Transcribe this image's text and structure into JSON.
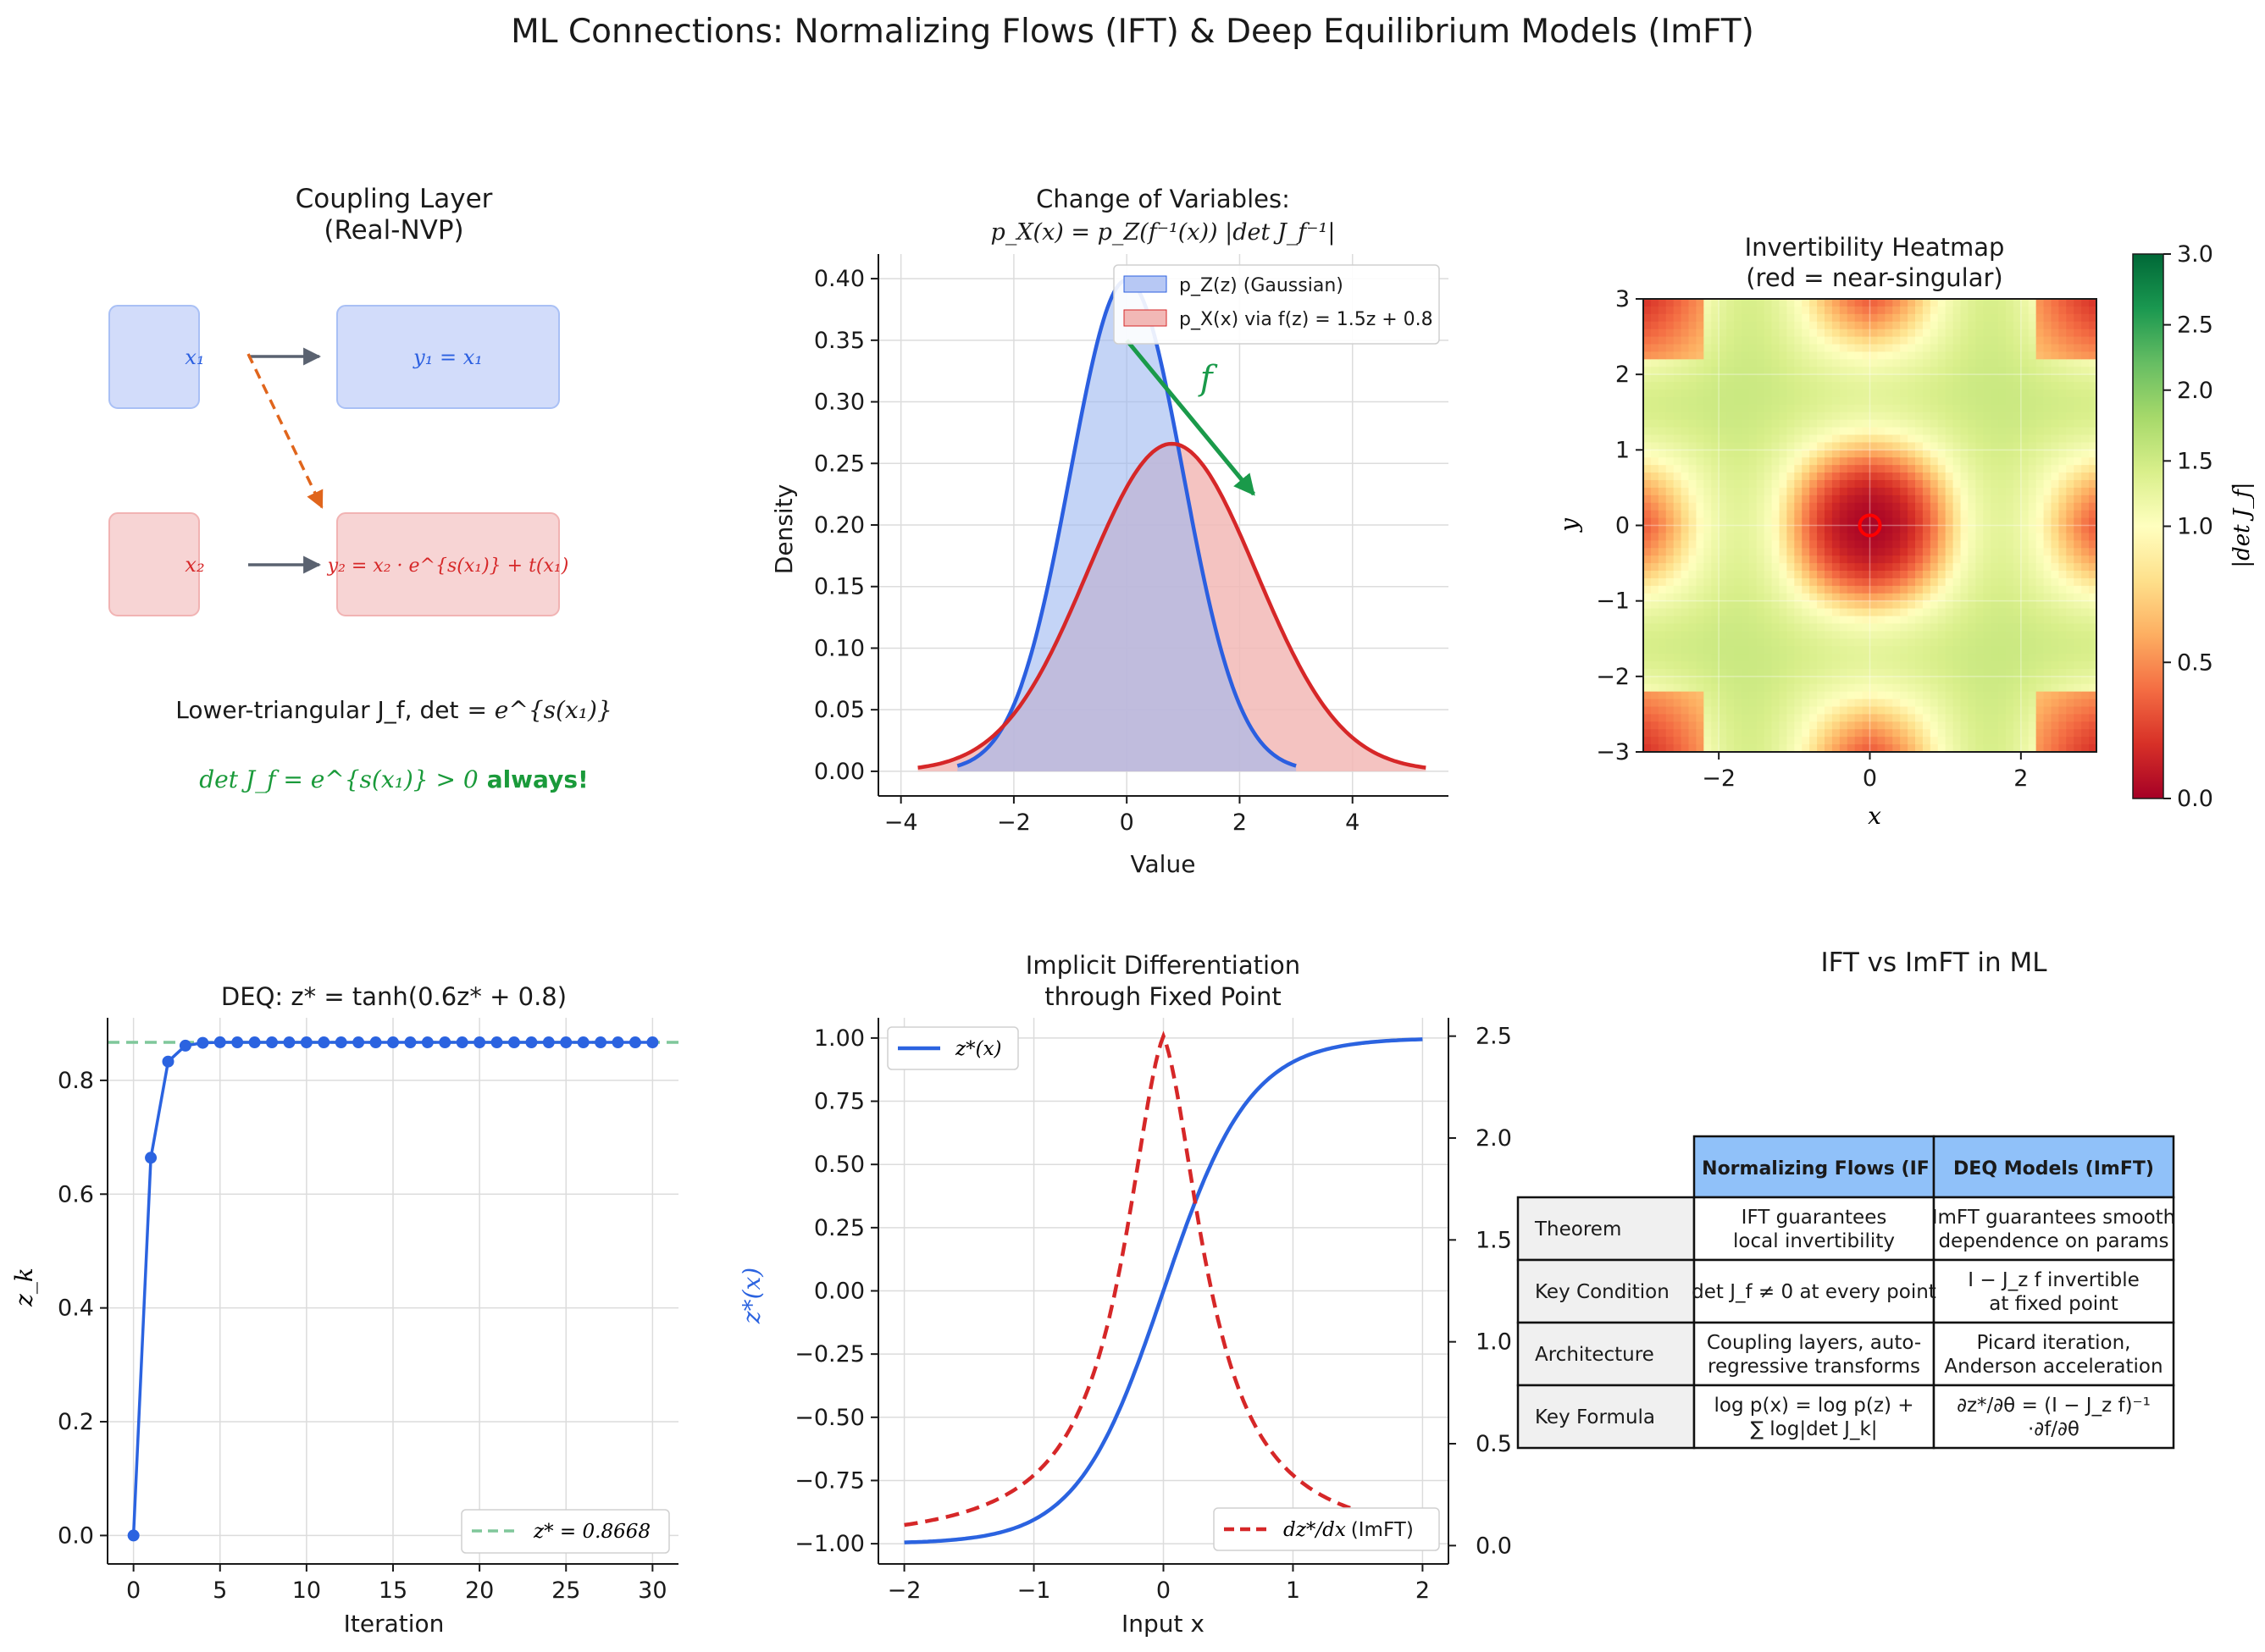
{
  "figure": {
    "suptitle": "ML Connections: Normalizing Flows (IFT) & Deep Equilibrium Models (ImFT)"
  },
  "coupling": {
    "title_line1": "Coupling Layer",
    "title_line2": "(Real-NVP)",
    "x1": "x₁",
    "x2": "x₂",
    "y1": "y₁ = x₁",
    "y2": "y₂ = x₂ · e^{s(x₁)} + t(x₁)",
    "det_prefix": "Lower-triangular J_f, det",
    "det_suffix": "= e^{s(x₁)}",
    "always_math": "det J_f = e^{s(x₁)} > 0",
    "always_word": "always!",
    "colors": {
      "blue_fill": "#d2dcfa",
      "blue_edge": "#a9c0f5",
      "red_fill": "#f7d4d4",
      "red_edge": "#f1b3b3",
      "arrow": "#5a6270",
      "dashed": "#e0651c",
      "always": "#1a9a3a"
    }
  },
  "cov": {
    "title_line1": "Change of Variables:",
    "title_line2": "p_X(x) = p_Z(f⁻¹(x)) |det J_f⁻¹|",
    "f_label": "f",
    "chart_data": {
      "type": "area",
      "xlabel": "Value",
      "ylabel": "Density",
      "xlim": [
        -4.4,
        5.7
      ],
      "ylim": [
        -0.02,
        0.42
      ],
      "xticks": [
        -4,
        -2,
        0,
        2,
        4
      ],
      "yticks": [
        0.0,
        0.05,
        0.1,
        0.15,
        0.2,
        0.25,
        0.3,
        0.35,
        0.4
      ],
      "series": [
        {
          "name": "p_Z(z) (Gaussian)",
          "kind": "normal",
          "mean": 0,
          "sd": 1,
          "x_range": [
            -3,
            3
          ],
          "peak": 0.399,
          "color": "#2b5fe0",
          "fill": "#b7c8f4"
        },
        {
          "name": "p_X(x) via f(z)=1.5z+0.8",
          "kind": "normal",
          "mean": 0.8,
          "sd": 1.5,
          "x_range": [
            -3.7,
            5.3
          ],
          "peak": 0.266,
          "color": "#d62728",
          "fill": "#f2b8b6"
        }
      ],
      "legend": [
        "p_Z(z) (Gaussian)",
        "p_X(x) via f(z) = 1.5z + 0.8"
      ],
      "legend_position": "top-right",
      "annotation_arrow": {
        "from": [
          0,
          0.35
        ],
        "to": [
          2.25,
          0.225
        ],
        "color": "#1a9a4a",
        "label": "f"
      }
    }
  },
  "heat": {
    "title_line1": "Invertibility Heatmap",
    "title_line2": "(red = near-singular)",
    "chart_data": {
      "type": "heatmap",
      "function": "|det J_f| = |(1 - cos(1.3x)*... ) |",
      "xlabel": "x",
      "ylabel": "y",
      "xlim": [
        -3,
        3
      ],
      "ylim": [
        -3,
        3
      ],
      "xticks": [
        -2,
        0,
        2
      ],
      "yticks": [
        -3,
        -2,
        -1,
        0,
        1,
        2,
        3
      ],
      "colorbar_label": "|det J_f|",
      "colorbar_range": [
        0.0,
        3.0
      ],
      "colorbar_ticks": [
        0.0,
        0.5,
        1.0,
        1.5,
        2.0,
        2.5,
        3.0
      ],
      "singular_marker": [
        0,
        0
      ]
    }
  },
  "deq": {
    "title": "DEQ: z* = tanh(0.6z* + 0.8)",
    "chart_data": {
      "type": "line",
      "xlabel": "Iteration",
      "ylabel": "z_k",
      "xlim": [
        -1.5,
        31.5
      ],
      "ylim": [
        -0.05,
        0.91
      ],
      "xticks": [
        0,
        5,
        10,
        15,
        20,
        25,
        30
      ],
      "yticks": [
        0.0,
        0.2,
        0.4,
        0.6,
        0.8
      ],
      "x": [
        0,
        1,
        2,
        3,
        4,
        5,
        6,
        7,
        8,
        9,
        10,
        11,
        12,
        13,
        14,
        15,
        16,
        17,
        18,
        19,
        20,
        21,
        22,
        23,
        24,
        25,
        26,
        27,
        28,
        29,
        30
      ],
      "values": [
        0.0,
        0.664,
        0.833,
        0.861,
        0.866,
        0.867,
        0.8668,
        0.8668,
        0.8668,
        0.8668,
        0.8668,
        0.8668,
        0.8668,
        0.8668,
        0.8668,
        0.8668,
        0.8668,
        0.8668,
        0.8668,
        0.8668,
        0.8668,
        0.8668,
        0.8668,
        0.8668,
        0.8668,
        0.8668,
        0.8668,
        0.8668,
        0.8668,
        0.8668,
        0.8668
      ],
      "reference_line": 0.8668,
      "legend": "z* = 0.8668",
      "legend_position": "lower-right",
      "color": "#2b63e0",
      "ref_color": "#7fc79a"
    }
  },
  "impl": {
    "title_line1": "Implicit Differentiation",
    "title_line2": "through Fixed Point",
    "chart_data": {
      "type": "line",
      "xlabel": "Input x",
      "ylabel_left": "z*(x)",
      "xlim": [
        -2.2,
        2.2
      ],
      "ylim_left": [
        -1.08,
        1.08
      ],
      "ylim_right": [
        -0.09,
        2.59
      ],
      "xticks": [
        -2,
        -1,
        0,
        1,
        2
      ],
      "yticks_left": [
        -1.0,
        -0.75,
        -0.5,
        -0.25,
        0.0,
        0.25,
        0.5,
        0.75,
        1.0
      ],
      "yticks_right": [
        0.0,
        0.5,
        1.0,
        1.5,
        2.0,
        2.5
      ],
      "series": [
        {
          "name": "z*(x)",
          "axis": "left",
          "function": "tanh(1.5x)",
          "color": "#2b63e0",
          "style": "solid"
        },
        {
          "name": "dz*/dx (ImFT)",
          "axis": "right",
          "function": "2.5*(1 - tanh(1.5x)^2)^... ",
          "color": "#d62728",
          "style": "dashed"
        }
      ],
      "legend_left": "z*(x)",
      "legend_right_math": "dz*/dx",
      "legend_right_text": "(ImFT)"
    }
  },
  "table": {
    "title": "IFT vs ImFT in ML",
    "headers": [
      "Normalizing Flows (IF",
      "DEQ Models (ImFT)"
    ],
    "rows": [
      {
        "label": "Theorem",
        "c1": [
          "IFT guarantees",
          "local invertibility"
        ],
        "c2": [
          "ImFT guarantees smooth",
          "dependence on params"
        ]
      },
      {
        "label": "Key Condition",
        "c1": [
          "det J_f ≠ 0 at every point"
        ],
        "c2": [
          "I − J_z f invertible",
          "at fixed point"
        ]
      },
      {
        "label": "Architecture",
        "c1": [
          "Coupling layers, auto-",
          "regressive transforms"
        ],
        "c2": [
          "Picard iteration,",
          "Anderson acceleration"
        ]
      },
      {
        "label": "Key Formula",
        "c1": [
          "log p(x) = log p(z) +",
          "∑ log|det J_k|"
        ],
        "c2": [
          "∂z*/∂θ = (I − J_z f)⁻¹",
          "·∂f/∂θ"
        ]
      }
    ],
    "colors": {
      "header": "#90c1f9",
      "label_bg": "#f0f0f0"
    }
  }
}
